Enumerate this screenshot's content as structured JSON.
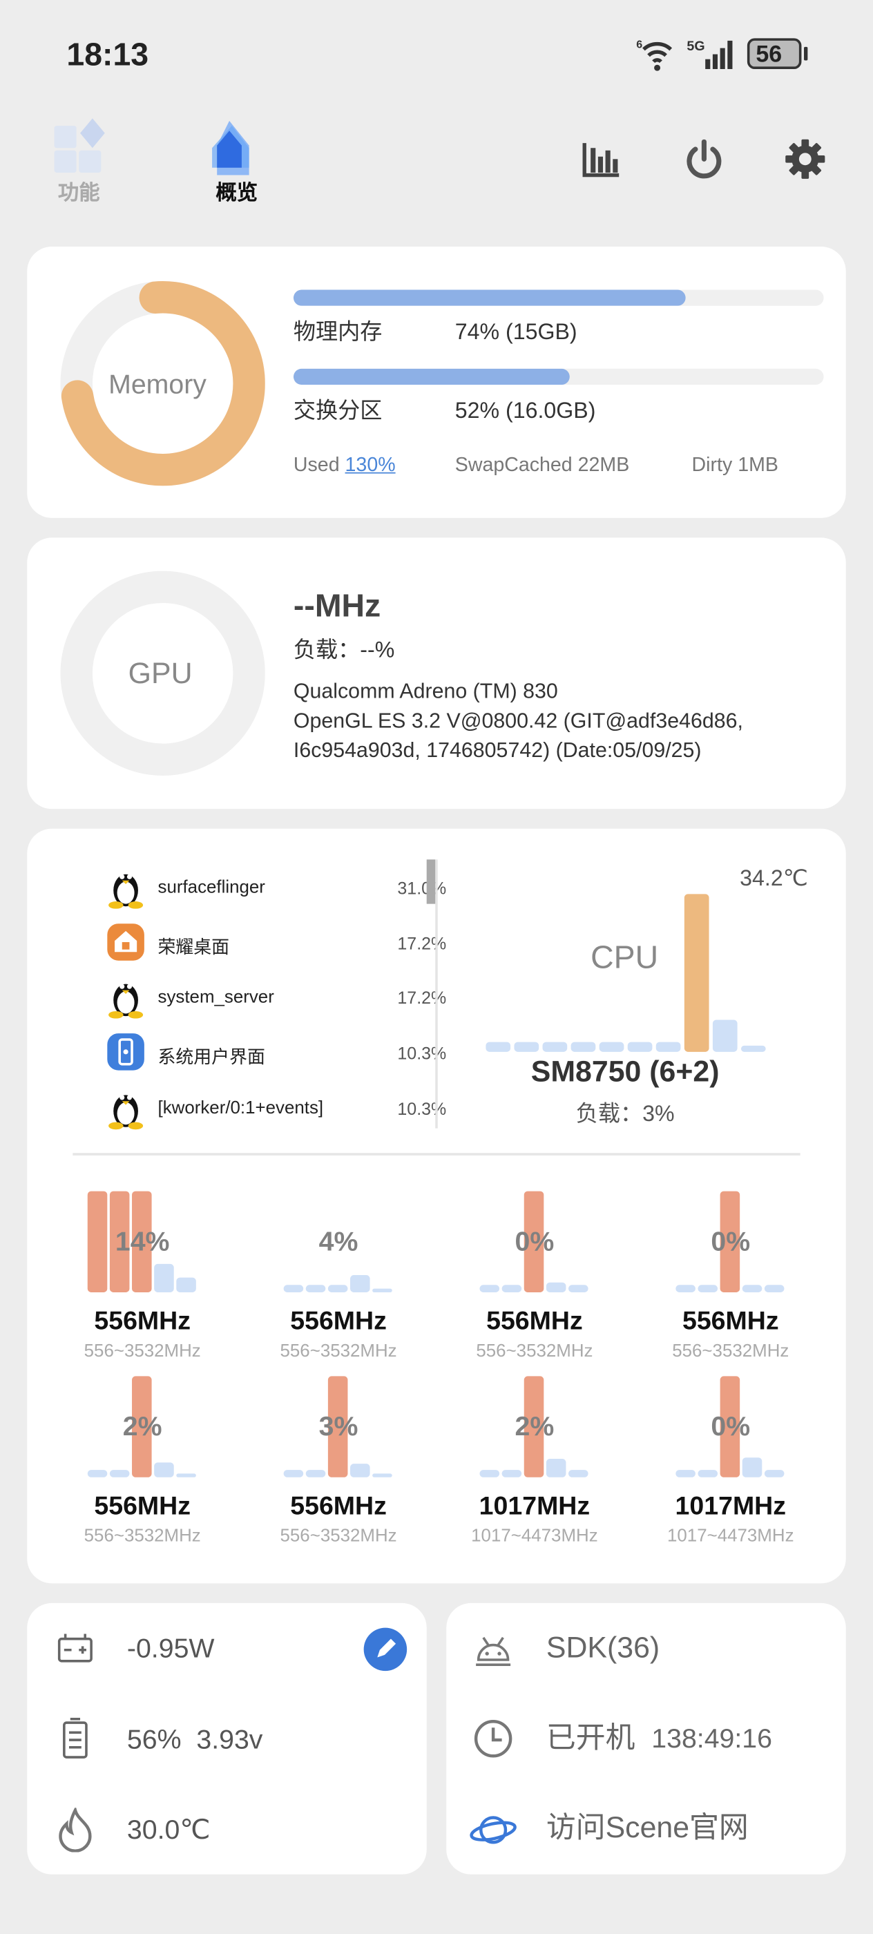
{
  "status_bar": {
    "time": "18:13",
    "battery": "56",
    "network": "5G",
    "wifi_label": "6"
  },
  "nav": {
    "tabs": [
      {
        "label": "功能",
        "active": false
      },
      {
        "label": "概览",
        "active": true
      }
    ],
    "actions": [
      "chart-icon",
      "power-icon",
      "gear-icon"
    ]
  },
  "memory": {
    "label": "Memory",
    "ring_percent": 74,
    "ram_label": "物理内存",
    "ram_value": "74% (15GB)",
    "ram_percent": 74,
    "swap_label": "交换分区",
    "swap_value": "52% (16.0GB)",
    "swap_percent": 52,
    "used_label": "Used",
    "used_value": "130%",
    "swapcached_label": "SwapCached",
    "swapcached_value": "22MB",
    "dirty_label": "Dirty",
    "dirty_value": "1MB"
  },
  "gpu": {
    "label": "GPU",
    "freq": "--MHz",
    "load": "负载：--%",
    "model": "Qualcomm Adreno (TM) 830",
    "driver_line1": "OpenGL ES 3.2 V@0800.42 (GIT@adf3e46d86,",
    "driver_line2": "I6c954a903d, 1746805742) (Date:05/09/25)"
  },
  "processes": [
    {
      "name": "surfaceflinger",
      "pct": "31.0%",
      "icon": "linux-penguin-icon"
    },
    {
      "name": "荣耀桌面",
      "pct": "17.2%",
      "icon": "home-launcher-icon"
    },
    {
      "name": "system_server",
      "pct": "17.2%",
      "icon": "linux-penguin-icon"
    },
    {
      "name": "系统用户界面",
      "pct": "10.3%",
      "icon": "system-ui-icon"
    },
    {
      "name": "[kworker/0:1+events]",
      "pct": "10.3%",
      "icon": "linux-penguin-icon"
    }
  ],
  "cpu": {
    "label": "CPU",
    "temp": "34.2℃",
    "chip": "SM8750 (6+2)",
    "load": "负载：3%",
    "history": [
      0.06,
      0.06,
      0.06,
      0.06,
      0.06,
      0.06,
      0.06,
      1.0,
      0.2,
      0.04
    ]
  },
  "cores": [
    {
      "load": "14%",
      "freq": "556MHz",
      "range": "556~3532MHz",
      "bars": [
        1,
        1,
        1,
        0.28,
        0.15
      ]
    },
    {
      "load": "4%",
      "freq": "556MHz",
      "range": "556~3532MHz",
      "bars": [
        0.07,
        0.07,
        0.07,
        0.17,
        0.04
      ]
    },
    {
      "load": "0%",
      "freq": "556MHz",
      "range": "556~3532MHz",
      "bars": [
        0.07,
        0.07,
        1,
        0.1,
        0.07
      ]
    },
    {
      "load": "0%",
      "freq": "556MHz",
      "range": "556~3532MHz",
      "bars": [
        0.07,
        0.07,
        1,
        0.07,
        0.07
      ]
    },
    {
      "load": "2%",
      "freq": "556MHz",
      "range": "556~3532MHz",
      "bars": [
        0.07,
        0.07,
        1,
        0.15,
        0.03
      ]
    },
    {
      "load": "3%",
      "freq": "556MHz",
      "range": "556~3532MHz",
      "bars": [
        0.07,
        0.07,
        1,
        0.14,
        0.03
      ]
    },
    {
      "load": "2%",
      "freq": "1017MHz",
      "range": "1017~4473MHz",
      "bars": [
        0.07,
        0.07,
        1,
        0.18,
        0.07
      ]
    },
    {
      "load": "0%",
      "freq": "1017MHz",
      "range": "1017~4473MHz",
      "bars": [
        0.07,
        0.07,
        1,
        0.2,
        0.07
      ]
    }
  ],
  "power": {
    "watts": "-0.95W",
    "battery_pct": "56%",
    "voltage": "3.93v",
    "temp": "30.0℃"
  },
  "system": {
    "sdk": "SDK(36)",
    "uptime_label": "已开机",
    "uptime": "138:49:16",
    "website": "访问Scene官网"
  },
  "colors": {
    "background": "#ededed",
    "memory_ring": "#edb97f",
    "bar_fill": "#8db0e6",
    "core_active": "#eb9e82",
    "core_idle": "#cfe0f7",
    "accent": "#3a78d8"
  }
}
